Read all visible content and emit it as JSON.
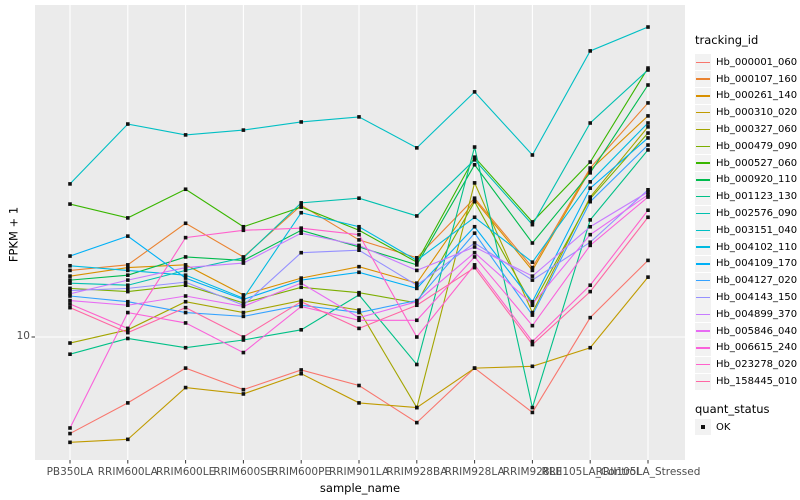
{
  "chart_data": {
    "type": "line",
    "title": "",
    "xlabel": "sample_name",
    "ylabel": "FPKM + 1",
    "y_scale": "log10",
    "y_ticks": [
      10
    ],
    "ylim_approx": [
      4.3,
      95
    ],
    "grid": "major",
    "legend_position": "right",
    "panel_bg": "#EBEBEB",
    "grid_color": "#FFFFFF",
    "marker": {
      "shape": "square",
      "color": "#111111"
    },
    "categories": [
      "PB350LA",
      "RRIM600LA",
      "RRIM600LE",
      "RRIM600SE",
      "RRIM600PE",
      "RRIM901LA",
      "RRIM928BA",
      "RRIM928LA",
      "RRIM928LE",
      "RRII105LA_Control",
      "RRII105LA_Stressed"
    ],
    "series": [
      {
        "name": "Hb_000001_060",
        "color": "#F8766D",
        "values": [
          5.2,
          6.4,
          8.1,
          7.0,
          8.0,
          7.2,
          5.6,
          8.1,
          6.0,
          11.4,
          16.8
        ]
      },
      {
        "name": "Hb_000107_160",
        "color": "#EA8331",
        "values": [
          15.7,
          16.3,
          21.6,
          17.2,
          24.4,
          19.3,
          17.1,
          25.6,
          16.0,
          31.4,
          48.8
        ]
      },
      {
        "name": "Hb_000261_140",
        "color": "#D89000",
        "values": [
          15.1,
          16.0,
          16.3,
          13.3,
          14.9,
          16.1,
          14.4,
          25.3,
          15.7,
          31.0,
          44.7
        ]
      },
      {
        "name": "Hb_000310_020",
        "color": "#C09B00",
        "values": [
          4.9,
          5.0,
          7.1,
          6.8,
          7.8,
          6.4,
          6.2,
          8.1,
          8.2,
          9.3,
          15.0
        ]
      },
      {
        "name": "Hb_000327_060",
        "color": "#A3A500",
        "values": [
          9.6,
          10.5,
          12.7,
          11.8,
          12.8,
          12.0,
          6.2,
          28.4,
          11.8,
          25.8,
          41.5
        ]
      },
      {
        "name": "Hb_000479_090",
        "color": "#7CAE00",
        "values": [
          13.9,
          13.6,
          14.2,
          12.6,
          14.0,
          13.5,
          12.6,
          25.0,
          12.4,
          25.5,
          39.8
        ]
      },
      {
        "name": "Hb_000527_060",
        "color": "#39B600",
        "values": [
          24.6,
          22.4,
          27.2,
          21.1,
          24.1,
          20.6,
          16.6,
          33.8,
          21.8,
          32.7,
          61.8
        ]
      },
      {
        "name": "Hb_000920_110",
        "color": "#00BB4E",
        "values": [
          14.7,
          15.2,
          17.2,
          16.8,
          20.6,
          18.4,
          16.3,
          32.1,
          18.9,
          30.4,
          55.1
        ]
      },
      {
        "name": "Hb_001123_130",
        "color": "#00C087",
        "values": [
          8.9,
          9.9,
          9.3,
          9.8,
          10.5,
          13.3,
          8.3,
          36.2,
          6.2,
          22.1,
          35.5
        ]
      },
      {
        "name": "Hb_002576_090",
        "color": "#00C0AF",
        "values": [
          14.4,
          14.2,
          15.7,
          17.1,
          24.8,
          25.6,
          22.7,
          33.2,
          21.4,
          42.6,
          61.0
        ]
      },
      {
        "name": "Hb_003151_040",
        "color": "#00BFC4",
        "values": [
          28.2,
          42.3,
          39.3,
          40.6,
          42.9,
          44.4,
          36.0,
          52.6,
          34.3,
          69.4,
          81.6
        ]
      },
      {
        "name": "Hb_004102_110",
        "color": "#00BAE0",
        "values": [
          16.2,
          15.7,
          15.2,
          13.0,
          23.2,
          21.1,
          16.8,
          22.5,
          16.6,
          28.6,
          42.6
        ]
      },
      {
        "name": "Hb_004109_170",
        "color": "#00B0F6",
        "values": [
          17.3,
          19.8,
          14.9,
          12.9,
          14.7,
          15.5,
          13.9,
          21.1,
          12.7,
          27.4,
          38.5
        ]
      },
      {
        "name": "Hb_004127_020",
        "color": "#35A2FF",
        "values": [
          13.2,
          12.7,
          11.8,
          11.5,
          12.4,
          11.8,
          12.8,
          20.2,
          11.6,
          25.0,
          36.7
        ]
      },
      {
        "name": "Hb_004143_150",
        "color": "#9590FF",
        "values": [
          13.7,
          13.9,
          14.5,
          12.4,
          17.7,
          18.0,
          14.2,
          18.9,
          14.7,
          19.0,
          27.1
        ]
      },
      {
        "name": "Hb_004899_370",
        "color": "#C77CFF",
        "values": [
          13.4,
          14.7,
          16.0,
          16.5,
          20.2,
          18.6,
          15.7,
          18.4,
          15.1,
          21.1,
          26.7
        ]
      },
      {
        "name": "Hb_005846_040",
        "color": "#E76BF3",
        "values": [
          12.8,
          12.4,
          13.2,
          12.3,
          14.4,
          11.4,
          12.7,
          17.7,
          12.5,
          20.0,
          26.2
        ]
      },
      {
        "name": "Hb_006615_240",
        "color": "#FA62DB",
        "values": [
          5.4,
          11.8,
          11.0,
          9.0,
          12.3,
          11.2,
          11.2,
          17.2,
          10.8,
          18.6,
          25.8
        ]
      },
      {
        "name": "Hb_023278_020",
        "color": "#FF61CC",
        "values": [
          12.5,
          10.6,
          19.6,
          20.6,
          20.9,
          20.0,
          10.0,
          16.3,
          9.7,
          14.2,
          23.6
        ]
      },
      {
        "name": "Hb_158445_010",
        "color": "#FF67A4",
        "values": [
          12.2,
          10.3,
          12.2,
          10.0,
          12.7,
          10.6,
          12.4,
          16.0,
          9.5,
          13.6,
          22.5
        ]
      }
    ]
  },
  "legend": {
    "tracking_title": "tracking_id",
    "quant_title": "quant_status",
    "quant_items": [
      {
        "label": "OK",
        "marker": "black-square"
      }
    ]
  }
}
